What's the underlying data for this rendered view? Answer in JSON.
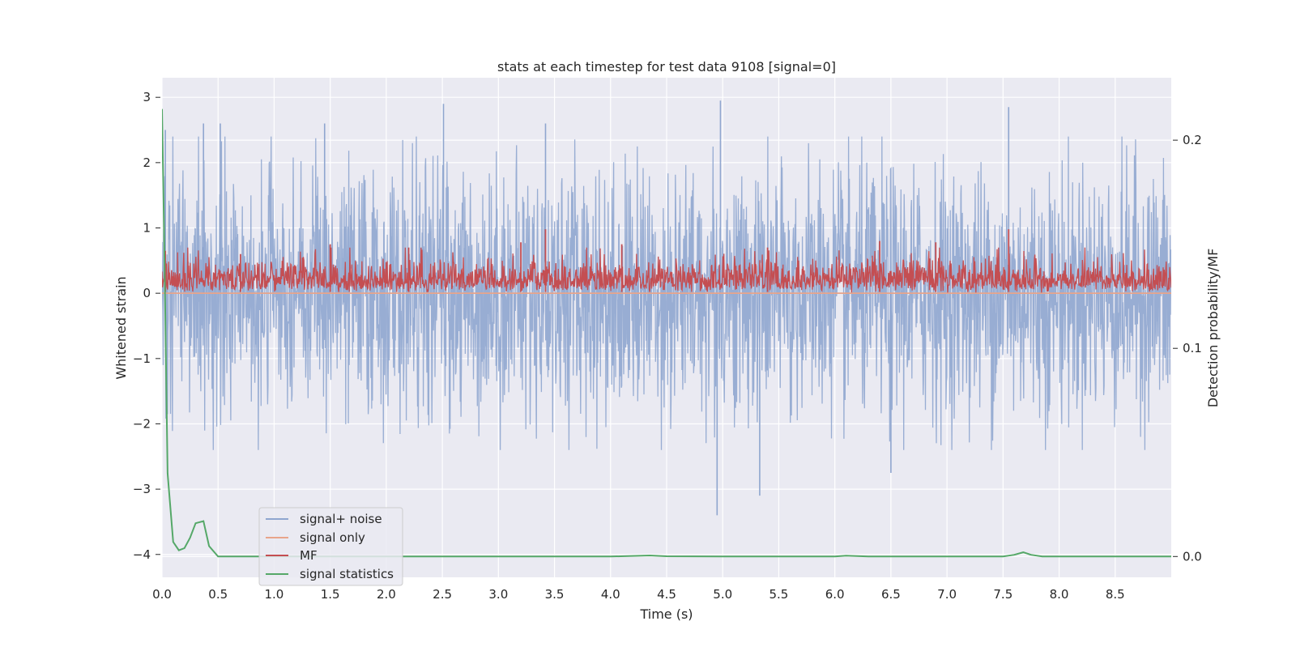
{
  "chart_data": {
    "type": "line",
    "title": "stats at each timestep for test data 9108 [signal=0]",
    "xlabel": "Time (s)",
    "ylabel": "Whitened strain",
    "y2label": "Detection probability/MF",
    "xlim": [
      0.0,
      9.0
    ],
    "ylim": [
      -4.35,
      3.3
    ],
    "y2lim": [
      -0.01,
      0.23
    ],
    "xticks": [
      0.0,
      0.5,
      1.0,
      1.5,
      2.0,
      2.5,
      3.0,
      3.5,
      4.0,
      4.5,
      5.0,
      5.5,
      6.0,
      6.5,
      7.0,
      7.5,
      8.0,
      8.5
    ],
    "xtick_labels": [
      "0.0",
      "0.5",
      "1.0",
      "1.5",
      "2.0",
      "2.5",
      "3.0",
      "3.5",
      "4.0",
      "4.5",
      "5.0",
      "5.5",
      "6.0",
      "6.5",
      "7.0",
      "7.5",
      "8.0",
      "8.5"
    ],
    "yticks": [
      3,
      2,
      1,
      0,
      -1,
      -2,
      -3,
      -4
    ],
    "ytick_labels": [
      "3",
      "2",
      "1",
      "0",
      "−1",
      "−2",
      "−3",
      "−4"
    ],
    "y2ticks": [
      0.2,
      0.1,
      0.0
    ],
    "y2tick_labels": [
      "0.2",
      "0.1",
      "0.0"
    ],
    "legend_position": "lower-left",
    "series": [
      {
        "name": "signal+ noise",
        "axis": "left",
        "color": "#8fa6cf",
        "kind": "noise",
        "sample_points": {
          "x": [
            0.03,
            0.37,
            0.52,
            1.45,
            2.51,
            3.42,
            4.95,
            4.98,
            5.33,
            6.5,
            7.55
          ],
          "y": [
            2.5,
            2.6,
            2.6,
            2.6,
            2.9,
            2.6,
            -3.4,
            2.95,
            -3.1,
            -2.75,
            2.85
          ]
        },
        "envelope_upper": 1.3,
        "envelope_lower": -1.3
      },
      {
        "name": "signal only",
        "axis": "left",
        "color": "#e8a48a",
        "x": [
          0.0,
          9.0
        ],
        "values": [
          0.0,
          0.0
        ]
      },
      {
        "name": "MF",
        "axis": "left",
        "color": "#c44e52",
        "kind": "band",
        "baseline": 0.0,
        "typical_peak": 0.45,
        "sample_peaks": {
          "x": [
            0.03,
            0.7,
            1.5,
            2.2,
            3.2,
            3.42,
            4.1,
            5.4,
            6.4,
            6.9,
            7.55
          ],
          "y": [
            0.65,
            0.6,
            0.75,
            0.7,
            0.78,
            0.98,
            0.75,
            0.7,
            0.8,
            0.78,
            0.98
          ]
        }
      },
      {
        "name": "signal statistics",
        "axis": "right",
        "color": "#55a868",
        "x": [
          0.0,
          0.02,
          0.05,
          0.1,
          0.15,
          0.2,
          0.25,
          0.3,
          0.37,
          0.42,
          0.5,
          0.6,
          1.0,
          2.0,
          3.0,
          4.0,
          4.35,
          4.5,
          5.0,
          6.0,
          6.1,
          6.3,
          7.0,
          7.5,
          7.6,
          7.68,
          7.75,
          7.85,
          8.0,
          8.5,
          9.0
        ],
        "values": [
          0.215,
          0.15,
          0.04,
          0.007,
          0.003,
          0.004,
          0.009,
          0.016,
          0.017,
          0.005,
          0.0,
          0.0,
          0.0,
          0.0,
          0.0,
          0.0,
          0.0005,
          0.0001,
          0.0,
          0.0,
          0.0004,
          0.0,
          0.0,
          0.0,
          0.0008,
          0.002,
          0.0008,
          0.0,
          0.0,
          0.0,
          0.0
        ]
      }
    ]
  }
}
